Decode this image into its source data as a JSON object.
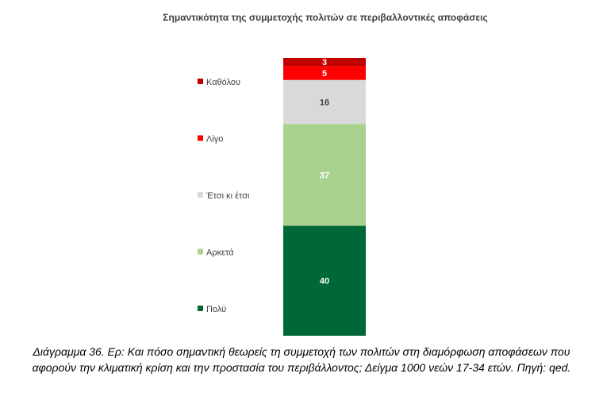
{
  "chart_data": {
    "type": "bar",
    "stacked": true,
    "title": "Σημαντικότητα της συμμετοχής πολιτών σε περιβαλλοντικές αποφάσεις",
    "ylim": [
      0,
      101
    ],
    "legend_position": "left",
    "grid": false,
    "series": [
      {
        "name": "Πολύ",
        "value": 40,
        "color": "#006837",
        "label_color": "#ffffff"
      },
      {
        "name": "Αρκετά",
        "value": 37,
        "color": "#a9d18e",
        "label_color": "#ffffff"
      },
      {
        "name": "Έτσι κι έτσι",
        "value": 16,
        "color": "#d9d9d9",
        "label_color": "#404040"
      },
      {
        "name": "Λίγο",
        "value": 5,
        "color": "#ff0000",
        "label_color": "#ffffff"
      },
      {
        "name": "Καθόλου",
        "value": 3,
        "color": "#c00000",
        "label_color": "#ffffff"
      }
    ],
    "legend_order": [
      "Καθόλου",
      "Λίγο",
      "Έτσι κι έτσι",
      "Αρκετά",
      "Πολύ"
    ]
  },
  "caption": "Διάγραμμα 36. Ερ: Και πόσο σημαντική θεωρείς τη συμμετοχή των πολιτών στη διαμόρφωση αποφάσεων που αφορούν την κλιματική κρίση και την προστασία του περιβάλλοντος; Δείγμα 1000 νεών 17-34 ετών. Πηγή: qed."
}
